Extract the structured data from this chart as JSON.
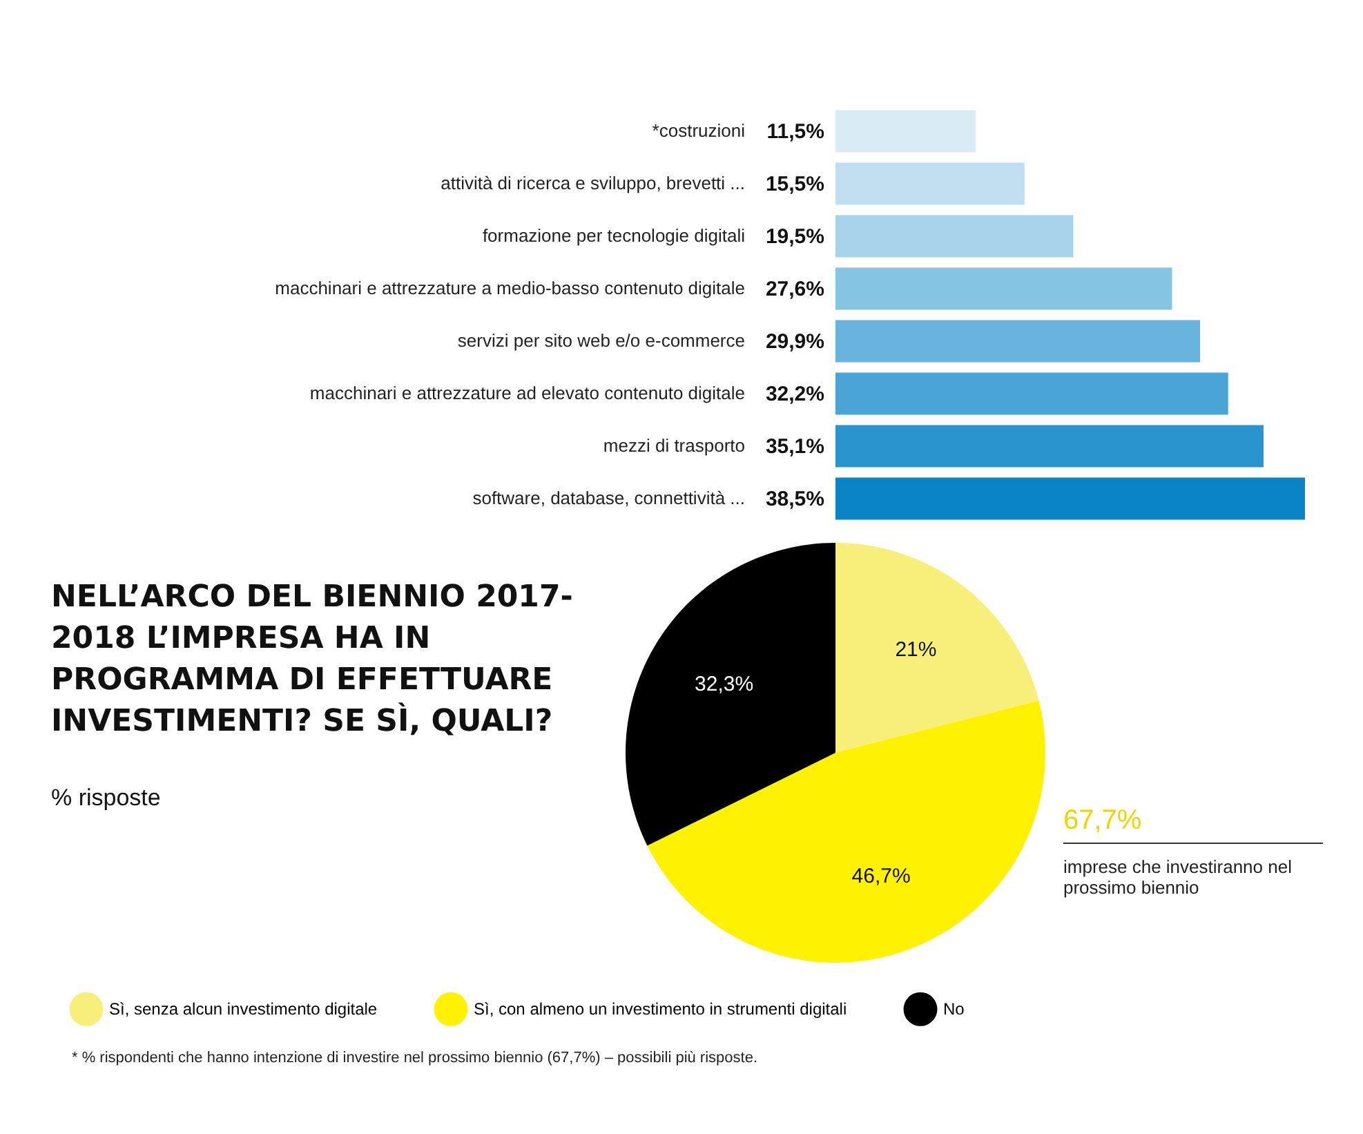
{
  "chart_data": [
    {
      "type": "bar",
      "orientation": "horizontal",
      "categories": [
        "*costruzioni",
        "attività di ricerca e sviluppo, brevetti ...",
        "formazione per tecnologie digitali",
        "macchinari e attrezzature a medio-basso contenuto digitale",
        "servizi per sito web e/o e-commerce",
        "macchinari e attrezzature ad elevato contenuto digitale",
        "mezzi di trasporto",
        "software, database, connettività ..."
      ],
      "values": [
        11.5,
        15.5,
        19.5,
        27.6,
        29.9,
        32.2,
        35.1,
        38.5
      ],
      "colors": [
        "#d9ebf5",
        "#bfdeef",
        "#a6d2ea",
        "#86c4e4",
        "#68b4de",
        "#4aa5d7",
        "#2a94cf",
        "#0a84c6"
      ],
      "value_labels": [
        "11,5%",
        "15,5%",
        "19,5%",
        "27,6%",
        "29,9%",
        "32,2%",
        "35,1%",
        "38,5%"
      ],
      "annotations": [
        "* %  rispondenti che hanno intenzione di investire nel prossimo biennio (67,7%) – possibili più risposte."
      ]
    },
    {
      "type": "pie",
      "title": "NELL’ARCO DEL BIENNIO 2017-2018 L’IMPRESA HA IN PROGRAMMA DI EFFETTUARE INVESTIMENTI? SE SÌ, QUALI?",
      "subtitle": "% risposte",
      "categories": [
        "Sì, senza alcun investimento digitale",
        "Sì, con almeno un investimento in strumenti digitali",
        "No"
      ],
      "values": [
        21,
        46.7,
        32.3
      ],
      "colors": [
        "#f8ee7a",
        "#fff200",
        "#000000"
      ],
      "value_labels": [
        "21%",
        "46,7%",
        "32,3%"
      ],
      "legend": "bottom",
      "annotations": [
        "67,7%",
        "imprese che investiranno nel prossimo biennio"
      ]
    }
  ]
}
